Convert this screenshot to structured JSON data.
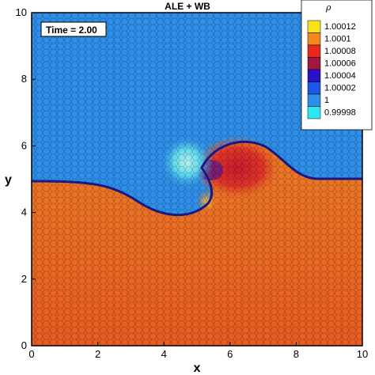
{
  "chart_data": {
    "type": "heatmap",
    "title": "ALE + WB",
    "xlabel": "x",
    "ylabel": "y",
    "xlim": [
      0,
      10
    ],
    "ylim": [
      0,
      10
    ],
    "x_ticks": [
      "0",
      "2",
      "4",
      "6",
      "8",
      "10"
    ],
    "y_ticks": [
      "0",
      "2",
      "4",
      "6",
      "8",
      "10"
    ],
    "annotation": "Time = 2.00",
    "grid": "hexagonal mesh overlay",
    "legend": {
      "title": "ρ",
      "placement": "top-right",
      "levels": [
        {
          "label": "1.00012",
          "color": "#f8e21c"
        },
        {
          "label": "1.0001",
          "color": "#f08a1e"
        },
        {
          "label": "1.00008",
          "color": "#e8281c"
        },
        {
          "label": "1.00006",
          "color": "#a01840"
        },
        {
          "label": "1.00004",
          "color": "#2a10c8"
        },
        {
          "label": "1.00002",
          "color": "#1c58e8"
        },
        {
          "label": "1",
          "color": "#2e8ee8"
        },
        {
          "label": "0.99998",
          "color": "#2ee8f0"
        }
      ]
    },
    "regions": {
      "upper_fluid_color": "#2e8ee8",
      "lower_fluid_color": "#ea6a24",
      "vortex_core_color": "#d8242a",
      "cold_spot_color": "#8ee8e8"
    }
  }
}
